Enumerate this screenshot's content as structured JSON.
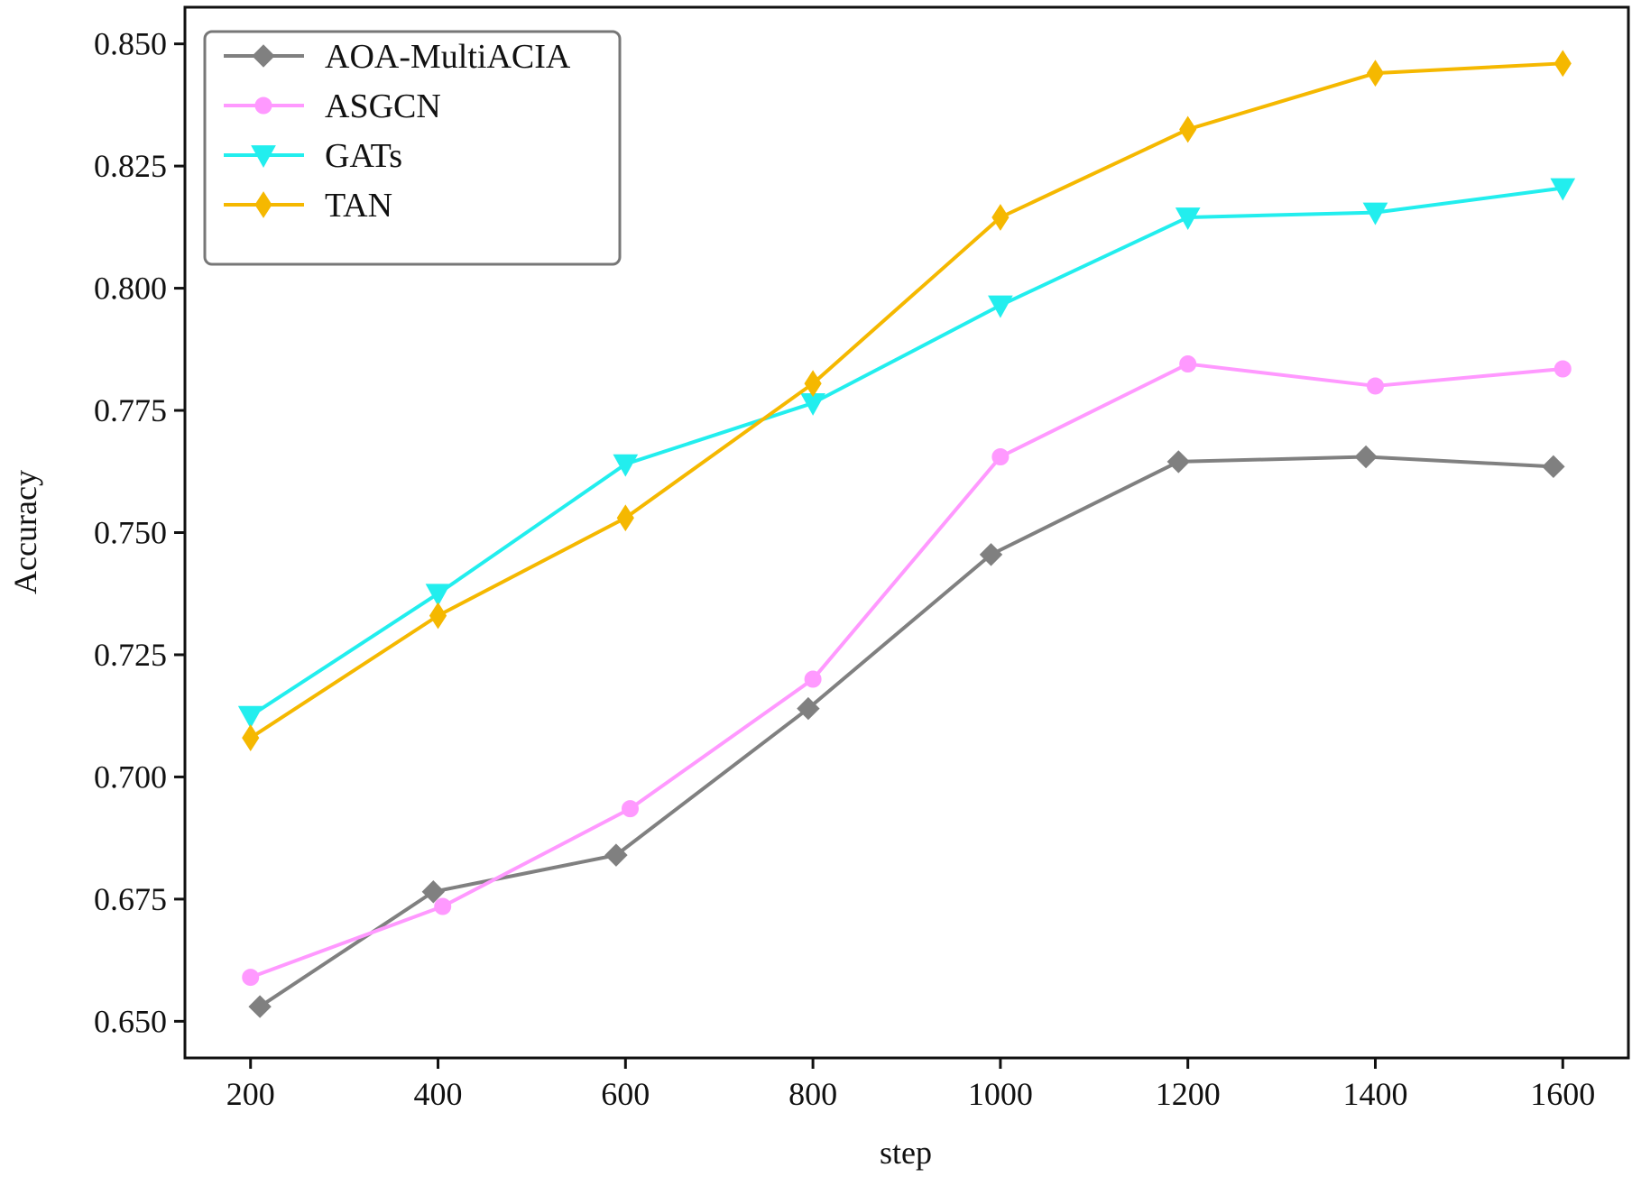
{
  "chart_data": {
    "type": "line",
    "title": "",
    "xlabel": "step",
    "ylabel": "Accuracy",
    "xlim": [
      130,
      1670
    ],
    "ylim": [
      0.6425,
      0.8575
    ],
    "xticks": [
      200,
      400,
      600,
      800,
      1000,
      1200,
      1400,
      1600
    ],
    "xtick_labels": [
      "200",
      "400",
      "600",
      "800",
      "1000",
      "1200",
      "1400",
      "1600"
    ],
    "yticks": [
      0.65,
      0.675,
      0.7,
      0.725,
      0.75,
      0.775,
      0.8,
      0.825,
      0.85
    ],
    "ytick_labels": [
      "0.650",
      "0.675",
      "0.700",
      "0.725",
      "0.750",
      "0.775",
      "0.800",
      "0.825",
      "0.850"
    ],
    "grid": false,
    "legend_position": "top-left",
    "series": [
      {
        "name": "AOA-MultiACIA",
        "color": "#808080",
        "marker": "square-diamond",
        "x": [
          210,
          395,
          590,
          795,
          990,
          1190,
          1390,
          1590
        ],
        "y": [
          0.653,
          0.6765,
          0.684,
          0.714,
          0.7455,
          0.7645,
          0.7655,
          0.7635
        ]
      },
      {
        "name": "ASGCN",
        "color": "#ff99ff",
        "marker": "circle",
        "x": [
          200,
          405,
          605,
          800,
          1000,
          1200,
          1400,
          1600
        ],
        "y": [
          0.659,
          0.6735,
          0.6935,
          0.72,
          0.7655,
          0.7845,
          0.78,
          0.7835
        ]
      },
      {
        "name": "GATs",
        "color": "#22eeee",
        "marker": "triangle-down",
        "x": [
          200,
          400,
          600,
          800,
          1000,
          1200,
          1400,
          1600
        ],
        "y": [
          0.7125,
          0.7375,
          0.764,
          0.7765,
          0.7965,
          0.8145,
          0.8155,
          0.8205
        ]
      },
      {
        "name": "TAN",
        "color": "#f5b800",
        "marker": "thin-diamond",
        "x": [
          200,
          400,
          600,
          800,
          1000,
          1200,
          1400,
          1600
        ],
        "y": [
          0.708,
          0.733,
          0.753,
          0.7805,
          0.8145,
          0.8325,
          0.844,
          0.846
        ]
      }
    ]
  }
}
